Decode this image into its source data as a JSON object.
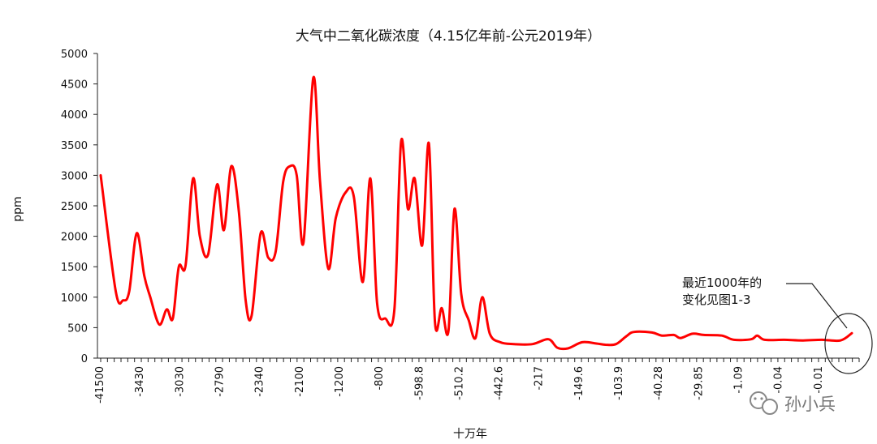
{
  "chart_data": {
    "type": "line",
    "title": "大气中二氧化碳浓度（4.15亿年前-公元2019年）",
    "xlabel": "十万年",
    "ylabel": "ppm",
    "ylim": [
      0,
      5000
    ],
    "yticks": [
      0,
      500,
      1000,
      1500,
      2000,
      2500,
      3000,
      3500,
      4000,
      4500,
      5000
    ],
    "xtick_labels": [
      "-41500",
      "-3430",
      "-3030",
      "-2790",
      "-2340",
      "-2100",
      "-1200",
      "-800",
      "-598.8",
      "-510.2",
      "-442.6",
      "-217",
      "-149.6",
      "-103.9",
      "-40.28",
      "-29.85",
      "-1.09",
      "-0.04",
      "-0.01"
    ],
    "legend": "none",
    "grid": false,
    "series": [
      {
        "color": "#ff0000",
        "points": [
          [
            0.0,
            3000
          ],
          [
            0.02,
            1100
          ],
          [
            0.03,
            950
          ],
          [
            0.038,
            1100
          ],
          [
            0.048,
            2050
          ],
          [
            0.058,
            1350
          ],
          [
            0.066,
            1000
          ],
          [
            0.078,
            550
          ],
          [
            0.088,
            800
          ],
          [
            0.096,
            650
          ],
          [
            0.104,
            1500
          ],
          [
            0.113,
            1520
          ],
          [
            0.123,
            2950
          ],
          [
            0.132,
            2000
          ],
          [
            0.143,
            1700
          ],
          [
            0.155,
            2850
          ],
          [
            0.164,
            2100
          ],
          [
            0.174,
            3150
          ],
          [
            0.184,
            2400
          ],
          [
            0.193,
            950
          ],
          [
            0.201,
            700
          ],
          [
            0.213,
            2050
          ],
          [
            0.223,
            1650
          ],
          [
            0.233,
            1750
          ],
          [
            0.243,
            2900
          ],
          [
            0.252,
            3150
          ],
          [
            0.261,
            3000
          ],
          [
            0.27,
            1900
          ],
          [
            0.283,
            4600
          ],
          [
            0.292,
            2900
          ],
          [
            0.303,
            1470
          ],
          [
            0.313,
            2300
          ],
          [
            0.326,
            2720
          ],
          [
            0.337,
            2650
          ],
          [
            0.349,
            1250
          ],
          [
            0.359,
            2950
          ],
          [
            0.368,
            900
          ],
          [
            0.379,
            650
          ],
          [
            0.391,
            800
          ],
          [
            0.4,
            3560
          ],
          [
            0.409,
            2450
          ],
          [
            0.418,
            2950
          ],
          [
            0.428,
            1850
          ],
          [
            0.437,
            3520
          ],
          [
            0.445,
            600
          ],
          [
            0.454,
            820
          ],
          [
            0.463,
            450
          ],
          [
            0.471,
            2450
          ],
          [
            0.48,
            1050
          ],
          [
            0.49,
            620
          ],
          [
            0.499,
            330
          ],
          [
            0.508,
            1000
          ],
          [
            0.518,
            400
          ],
          [
            0.532,
            260
          ],
          [
            0.55,
            230
          ],
          [
            0.575,
            230
          ],
          [
            0.596,
            310
          ],
          [
            0.608,
            170
          ],
          [
            0.622,
            160
          ],
          [
            0.641,
            260
          ],
          [
            0.66,
            240
          ],
          [
            0.672,
            220
          ],
          [
            0.686,
            230
          ],
          [
            0.7,
            360
          ],
          [
            0.71,
            430
          ],
          [
            0.734,
            420
          ],
          [
            0.747,
            370
          ],
          [
            0.763,
            380
          ],
          [
            0.772,
            330
          ],
          [
            0.788,
            400
          ],
          [
            0.803,
            380
          ],
          [
            0.827,
            370
          ],
          [
            0.843,
            300
          ],
          [
            0.866,
            310
          ],
          [
            0.874,
            370
          ],
          [
            0.884,
            300
          ],
          [
            0.91,
            300
          ],
          [
            0.935,
            290
          ],
          [
            0.96,
            300
          ],
          [
            0.985,
            290
          ],
          [
            1.0,
            410
          ]
        ]
      }
    ],
    "annotation": {
      "text_lines": [
        "最近1000年的",
        "变化见图1-3"
      ]
    }
  },
  "watermark": {
    "text": "孙小兵",
    "icon": "wechat-official-account-icon"
  },
  "colors": {
    "line": "#ff0000",
    "axis": "#222222",
    "annotation": "#222222"
  }
}
